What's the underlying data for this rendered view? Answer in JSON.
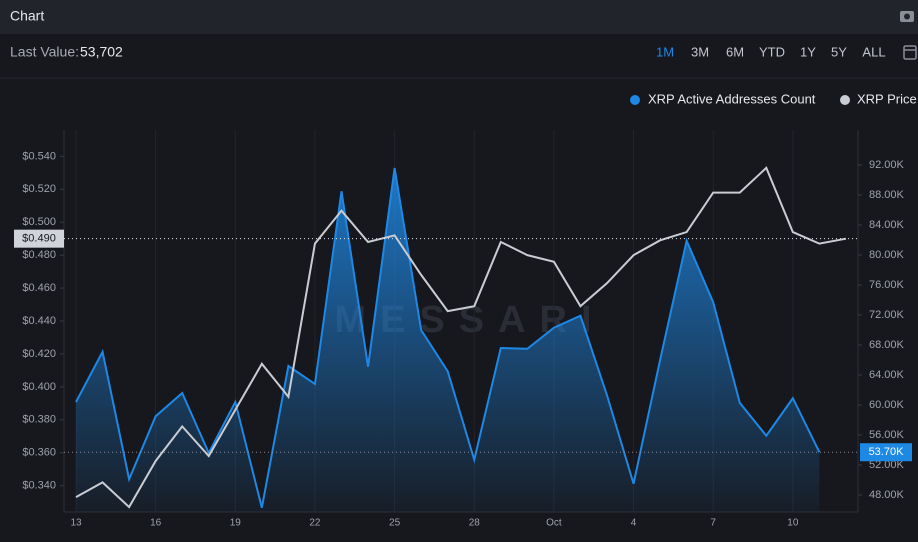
{
  "chart_data": {
    "type": "line",
    "title": "Chart",
    "last_value_label": "Last Value:",
    "last_value": {
      "value": 53702,
      "label": "53,702"
    },
    "ranges": [
      "1M",
      "3M",
      "6M",
      "YTD",
      "1Y",
      "5Y",
      "ALL"
    ],
    "active_range": "1M",
    "watermark": "MESSARI",
    "categories": [
      "13",
      null,
      null,
      "16",
      null,
      null,
      "19",
      null,
      null,
      "22",
      null,
      null,
      "25",
      null,
      null,
      "28",
      null,
      null,
      "Oct",
      null,
      null,
      "4",
      null,
      null,
      "7",
      null,
      null,
      "10",
      null,
      null
    ],
    "series": [
      {
        "name": "XRP Active Addresses Count",
        "color": "#1e88e5",
        "axis": "y2",
        "fill": true,
        "values": [
          60400,
          67100,
          50100,
          58500,
          61600,
          53600,
          60400,
          46300,
          65200,
          62800,
          88500,
          65100,
          91600,
          70000,
          64500,
          52700,
          67600,
          67500,
          70300,
          71900,
          61300,
          49500,
          66000,
          81900,
          73700,
          60300,
          55900,
          60900,
          53702,
          null
        ]
      },
      {
        "name": "XRP Price",
        "color": "#c9ccd3",
        "values": [
          0.333,
          0.342,
          0.327,
          0.355,
          0.376,
          0.358,
          0.386,
          0.414,
          0.394,
          0.487,
          0.507,
          0.488,
          0.492,
          0.468,
          0.446,
          0.449,
          0.488,
          0.48,
          0.476,
          0.449,
          0.463,
          0.48,
          0.489,
          0.494,
          0.518,
          0.518,
          0.533,
          0.494,
          0.487,
          0.49
        ]
      }
    ],
    "ylim": [
      0.324,
      0.556
    ],
    "yticks": [
      {
        "value": 0.34,
        "label": "$0.340"
      },
      {
        "value": 0.36,
        "label": "$0.360"
      },
      {
        "value": 0.38,
        "label": "$0.380"
      },
      {
        "value": 0.4,
        "label": "$0.400"
      },
      {
        "value": 0.42,
        "label": "$0.420"
      },
      {
        "value": 0.44,
        "label": "$0.440"
      },
      {
        "value": 0.46,
        "label": "$0.460"
      },
      {
        "value": 0.48,
        "label": "$0.480"
      },
      {
        "value": 0.5,
        "label": "$0.500"
      },
      {
        "value": 0.52,
        "label": "$0.520"
      },
      {
        "value": 0.54,
        "label": "$0.540"
      }
    ],
    "y2lim": [
      45730,
      96670
    ],
    "y2ticks": [
      {
        "value": 48000,
        "label": "48.00K"
      },
      {
        "value": 52000,
        "label": "52.00K"
      },
      {
        "value": 56000,
        "label": "56.00K"
      },
      {
        "value": 60000,
        "label": "60.00K"
      },
      {
        "value": 64000,
        "label": "64.00K"
      },
      {
        "value": 68000,
        "label": "68.00K"
      },
      {
        "value": 72000,
        "label": "72.00K"
      },
      {
        "value": 76000,
        "label": "76.00K"
      },
      {
        "value": 80000,
        "label": "80.00K"
      },
      {
        "value": 84000,
        "label": "84.00K"
      },
      {
        "value": 88000,
        "label": "88.00K"
      },
      {
        "value": 92000,
        "label": "92.00K"
      }
    ],
    "current_markers": [
      {
        "axis": "y",
        "value": 0.49,
        "label": "$0.490"
      },
      {
        "axis": "y2",
        "value": 53702,
        "label": "53.70K"
      }
    ]
  }
}
